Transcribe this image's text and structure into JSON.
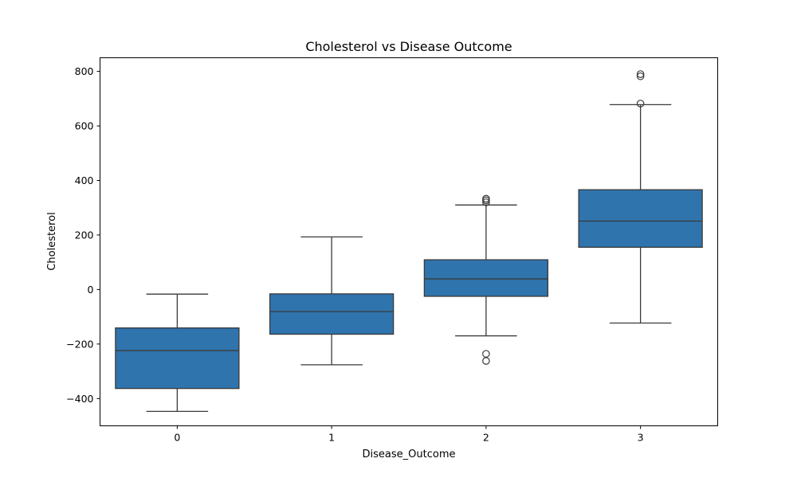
{
  "chart_data": {
    "type": "box",
    "title": "Cholesterol vs Disease Outcome",
    "xlabel": "Disease_Outcome",
    "ylabel": "Cholesterol",
    "categories": [
      "0",
      "1",
      "2",
      "3"
    ],
    "ylim": [
      -500,
      850
    ],
    "yticks": [
      -400,
      -200,
      0,
      200,
      400,
      600,
      800
    ],
    "ytick_labels": [
      "−400",
      "−200",
      "0",
      "200",
      "400",
      "600",
      "800"
    ],
    "grid": false,
    "legend": "none",
    "box_color": "#2f74ad",
    "line_color": "#3a3a3a",
    "boxes": [
      {
        "category": "0",
        "whisker_low": -447,
        "q1": -363,
        "median": -224,
        "q3": -141,
        "whisker_high": -17,
        "outliers": []
      },
      {
        "category": "1",
        "whisker_low": -276,
        "q1": -164,
        "median": -81,
        "q3": -16,
        "whisker_high": 193,
        "outliers": []
      },
      {
        "category": "2",
        "whisker_low": -170,
        "q1": -25,
        "median": 39,
        "q3": 109,
        "whisker_high": 310,
        "outliers": [
          -236,
          -262,
          320,
          327,
          333
        ]
      },
      {
        "category": "3",
        "whisker_low": -123,
        "q1": 155,
        "median": 251,
        "q3": 366,
        "whisker_high": 678,
        "outliers": [
          682,
          782,
          790
        ]
      }
    ]
  }
}
